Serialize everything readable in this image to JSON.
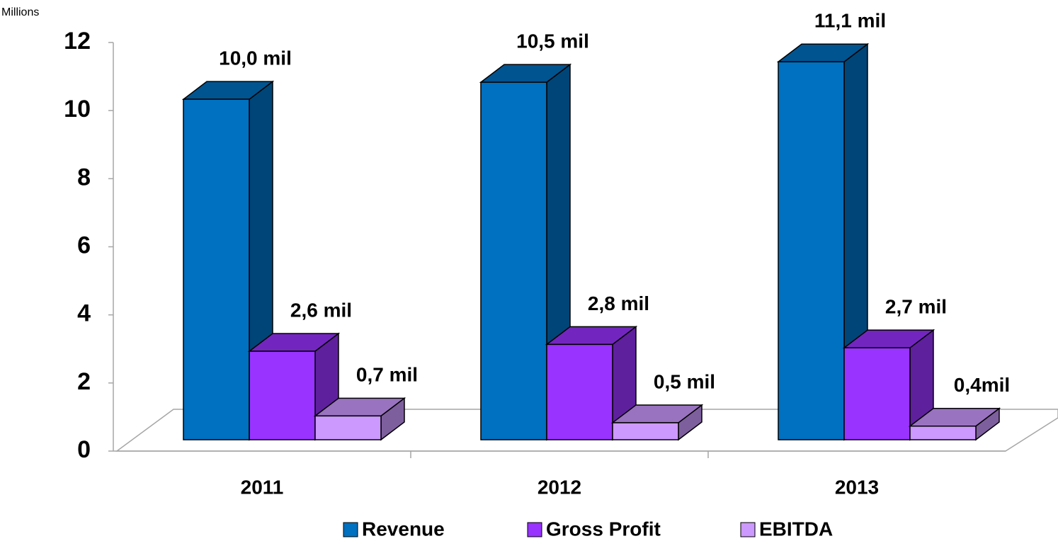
{
  "chart_data": {
    "type": "bar3d",
    "unit_label": "Millions",
    "categories": [
      "2011",
      "2012",
      "2013"
    ],
    "series": [
      {
        "name": "Revenue",
        "color": "#0070C0",
        "values": [
          10.0,
          10.5,
          11.1
        ],
        "value_labels": [
          "10,0 mil",
          "10,5 mil",
          "11,1 mil"
        ]
      },
      {
        "name": "Gross Profit",
        "color": "#9933FF",
        "values": [
          2.6,
          2.8,
          2.7
        ],
        "value_labels": [
          "2,6 mil",
          "2,8 mil",
          "2,7 mil"
        ]
      },
      {
        "name": "EBITDA",
        "color": "#CC99FF",
        "values": [
          0.7,
          0.5,
          0.4
        ],
        "value_labels": [
          "0,7 mil",
          "0,5 mil",
          "0,4mil"
        ]
      }
    ],
    "ylim": [
      0,
      12
    ],
    "yticks": [
      0,
      2,
      4,
      6,
      8,
      10,
      12
    ],
    "legend": "bottom"
  }
}
